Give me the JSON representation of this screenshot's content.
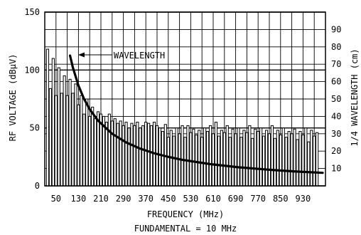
{
  "chart_data": {
    "type": "bar",
    "title": "",
    "xlabel": "FREQUENCY (MHz)",
    "subtitle": "FUNDAMENTAL = 10 MHz",
    "ylabel_left": "RF VOLTAGE (dBμV)",
    "ylabel_right": "1/4 WAVELENGTH (cm)",
    "xlim": [
      10,
      1010
    ],
    "ylim_left": [
      0,
      150
    ],
    "ylim_right": [
      0,
      100
    ],
    "x_ticks": [
      50,
      130,
      210,
      290,
      370,
      450,
      530,
      610,
      690,
      770,
      850,
      930
    ],
    "x_tick_labels": [
      "50",
      "130",
      "210",
      "290",
      "370",
      "450",
      "530",
      "610",
      "690",
      "770",
      "850",
      "930"
    ],
    "y_ticks_left": [
      0,
      50,
      100,
      150
    ],
    "y_tick_labels_left": [
      "0",
      "50",
      "100",
      "150"
    ],
    "y_ticks_right": [
      10,
      20,
      30,
      40,
      50,
      60,
      70,
      80,
      90
    ],
    "y_tick_labels_right": [
      "10",
      "20",
      "30",
      "40",
      "50",
      "60",
      "70",
      "80",
      "90"
    ],
    "grid": true,
    "series": [
      {
        "axis": "left",
        "frequencies_MHz": [
          20,
          30,
          40,
          50,
          60,
          70,
          80,
          90,
          100,
          110,
          120,
          130,
          140,
          150,
          160,
          170,
          180,
          190,
          200,
          210,
          220,
          230,
          240,
          250,
          260,
          270,
          280,
          290,
          300,
          310,
          320,
          330,
          340,
          350,
          360,
          370,
          380,
          390,
          400,
          410,
          420,
          430,
          440,
          450,
          460,
          470,
          480,
          490,
          500,
          510,
          520,
          530,
          540,
          550,
          560,
          570,
          580,
          590,
          600,
          610,
          620,
          630,
          640,
          650,
          660,
          670,
          680,
          690,
          700,
          710,
          720,
          730,
          740,
          750,
          760,
          770,
          780,
          790,
          800,
          810,
          820,
          830,
          840,
          850,
          860,
          870,
          880,
          890,
          900,
          910,
          920,
          930,
          940,
          950,
          960,
          970,
          980
        ],
        "values_dBuV": [
          118,
          84,
          110,
          78,
          102,
          80,
          95,
          78,
          92,
          80,
          88,
          70,
          78,
          62,
          75,
          60,
          68,
          58,
          64,
          62,
          60,
          55,
          62,
          56,
          58,
          54,
          56,
          52,
          55,
          50,
          54,
          52,
          55,
          50,
          52,
          55,
          54,
          52,
          55,
          52,
          50,
          47,
          53,
          42,
          48,
          43,
          50,
          45,
          52,
          42,
          52,
          46,
          49,
          44,
          48,
          42,
          50,
          47,
          52,
          45,
          55,
          43,
          48,
          46,
          52,
          42,
          49,
          45,
          50,
          42,
          48,
          46,
          52,
          41,
          49,
          47,
          50,
          43,
          48,
          45,
          52,
          41,
          48,
          44,
          50,
          42,
          47,
          45,
          49,
          40,
          47,
          44,
          50,
          38,
          48,
          43,
          46
        ]
      },
      {
        "name": "WAVELENGTH",
        "axis": "right",
        "type": "line",
        "x": [
          100,
          110,
          130,
          150,
          170,
          200,
          250,
          300,
          350,
          400,
          450,
          500,
          600,
          700,
          800,
          900,
          1000
        ],
        "y": [
          75,
          68.2,
          57.7,
          50,
          44.1,
          37.5,
          30,
          25,
          21.4,
          18.75,
          16.7,
          15,
          12.5,
          10.7,
          9.4,
          8.3,
          7.5
        ]
      }
    ]
  }
}
